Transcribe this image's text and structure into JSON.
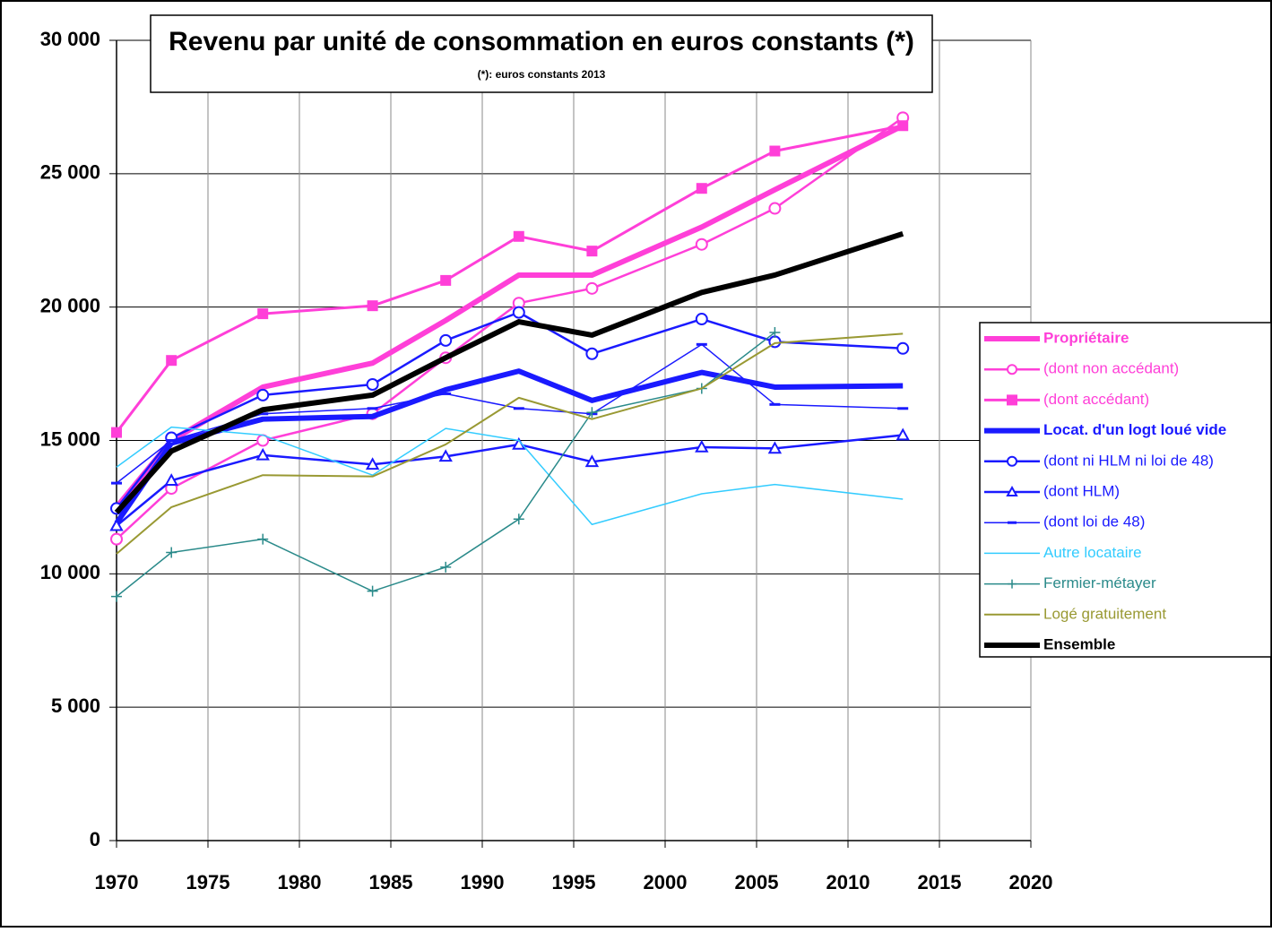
{
  "chart_data": {
    "type": "line",
    "title": "Revenu par unité de consommation en euros constants (*)",
    "subtitle": "(*): euros constants 2013",
    "x": [
      1970,
      1973,
      1978,
      1984,
      1988,
      1992,
      1996,
      2002,
      2006,
      2013
    ],
    "xlim": [
      1970,
      2020
    ],
    "xticks": [
      1970,
      1975,
      1980,
      1985,
      1990,
      1995,
      2000,
      2005,
      2010,
      2015,
      2020
    ],
    "ylim": [
      0,
      30000
    ],
    "yticks": [
      0,
      {
        "value": 5000,
        "label": "5 000"
      },
      {
        "value": 10000,
        "label": "10 000"
      },
      {
        "value": 15000,
        "label": "15 000"
      },
      {
        "value": 20000,
        "label": "20 000"
      },
      {
        "value": 25000,
        "label": "25 000"
      },
      {
        "value": 30000,
        "label": "30 000"
      }
    ],
    "grid": true,
    "legend": "right",
    "series": [
      {
        "name": "Propriétaire",
        "color": "#ff3fd8",
        "width": 6,
        "marker": "none",
        "bold": true,
        "values": [
          12500,
          15000,
          17000,
          17900,
          19500,
          21200,
          21200,
          23000,
          24400,
          26800
        ]
      },
      {
        "name": "(dont non accédant)",
        "color": "#ff3fd8",
        "width": 2.5,
        "marker": "circle",
        "values": [
          11300,
          13200,
          15000,
          16000,
          18100,
          20150,
          20700,
          22350,
          23700,
          27100
        ]
      },
      {
        "name": "(dont accédant)",
        "color": "#ff3fd8",
        "width": 3,
        "marker": "square",
        "values": [
          15300,
          18000,
          19750,
          20050,
          21000,
          22650,
          22100,
          24450,
          25850,
          26800
        ]
      },
      {
        "name": "Locat. d'un logt loué vide",
        "color": "#1a1aff",
        "width": 6,
        "marker": "none",
        "bold": true,
        "values": [
          11900,
          14900,
          15800,
          15900,
          16900,
          17600,
          16500,
          17550,
          17000,
          17050
        ]
      },
      {
        "name": "(dont ni HLM ni loi de 48)",
        "color": "#1a1aff",
        "width": 2.5,
        "marker": "circle",
        "values": [
          12450,
          15100,
          16700,
          17100,
          18750,
          19800,
          18250,
          19550,
          18700,
          18450
        ]
      },
      {
        "name": "(dont HLM)",
        "color": "#1a1aff",
        "width": 2.5,
        "marker": "triangle",
        "values": [
          11800,
          13500,
          14450,
          14100,
          14400,
          14850,
          14200,
          14750,
          14700,
          15200
        ]
      },
      {
        "name": "(dont loi de 48)",
        "color": "#1a1aff",
        "width": 1.5,
        "marker": "dash",
        "values": [
          13400,
          15000,
          16000,
          16200,
          16750,
          16200,
          16000,
          18600,
          16350,
          16200
        ]
      },
      {
        "name": "Autre locataire",
        "color": "#33ccff",
        "width": 1.5,
        "marker": "none",
        "values": [
          14000,
          15500,
          15200,
          13700,
          15450,
          15000,
          11850,
          13000,
          13350,
          12800
        ]
      },
      {
        "name": "Fermier-métayer",
        "color": "#2a8a8a",
        "width": 1.5,
        "marker": "plus",
        "values": [
          9150,
          10800,
          11300,
          9350,
          10250,
          12050,
          16050,
          16950,
          19050,
          null
        ]
      },
      {
        "name": "Logé gratuitement",
        "color": "#999933",
        "width": 2,
        "marker": "none",
        "values": [
          10750,
          12500,
          13700,
          13650,
          14850,
          16600,
          15800,
          16950,
          18650,
          19000
        ]
      },
      {
        "name": "Ensemble",
        "color": "#000000",
        "width": 6,
        "marker": "none",
        "bold": true,
        "values": [
          12300,
          14600,
          16150,
          16700,
          18100,
          19450,
          18950,
          20550,
          21200,
          22750
        ]
      }
    ]
  }
}
